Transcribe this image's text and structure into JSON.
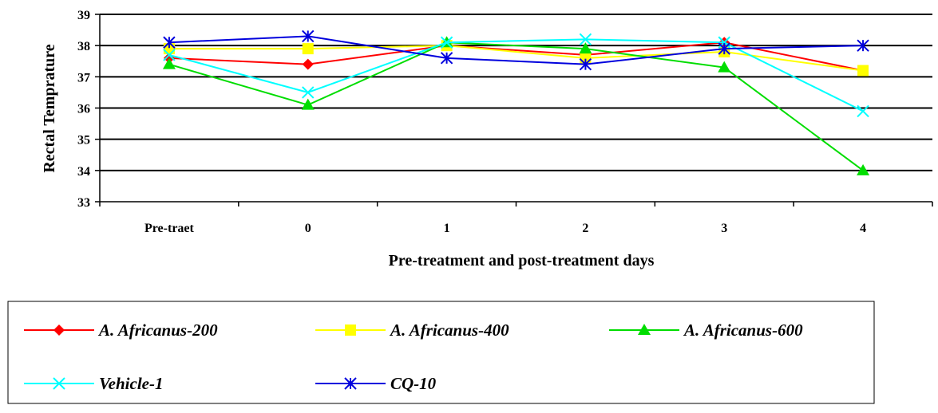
{
  "chart_data": {
    "type": "line",
    "title": "",
    "xlabel": "Pre-treatment and post-treatment days",
    "ylabel": "Rectal Temprature",
    "categories": [
      "Pre-traet",
      "0",
      "1",
      "2",
      "3",
      "4"
    ],
    "ylim": [
      33,
      39
    ],
    "yticks": [
      33,
      34,
      35,
      36,
      37,
      38,
      39
    ],
    "grid": true,
    "legend_position": "bottom",
    "series": [
      {
        "name": "A. Africanus-200",
        "color": "#ff0000",
        "marker": "diamond",
        "values": [
          37.6,
          37.4,
          38.0,
          37.7,
          38.1,
          37.2
        ]
      },
      {
        "name": "A. Africanus-400",
        "color": "#ffff00",
        "marker": "square",
        "values": [
          37.9,
          37.9,
          38.0,
          37.6,
          37.8,
          37.2
        ]
      },
      {
        "name": "A. Africanus-600",
        "color": "#00dd00",
        "marker": "triangle",
        "values": [
          37.4,
          36.1,
          38.1,
          37.9,
          37.3,
          34.0
        ]
      },
      {
        "name": "Vehicle-1",
        "color": "#00ffff",
        "marker": "x",
        "values": [
          37.7,
          36.5,
          38.1,
          38.2,
          38.1,
          35.9
        ]
      },
      {
        "name": "CQ-10",
        "color": "#0000dd",
        "marker": "asterisk",
        "values": [
          38.1,
          38.3,
          37.6,
          37.4,
          37.9,
          38.0
        ]
      }
    ]
  }
}
